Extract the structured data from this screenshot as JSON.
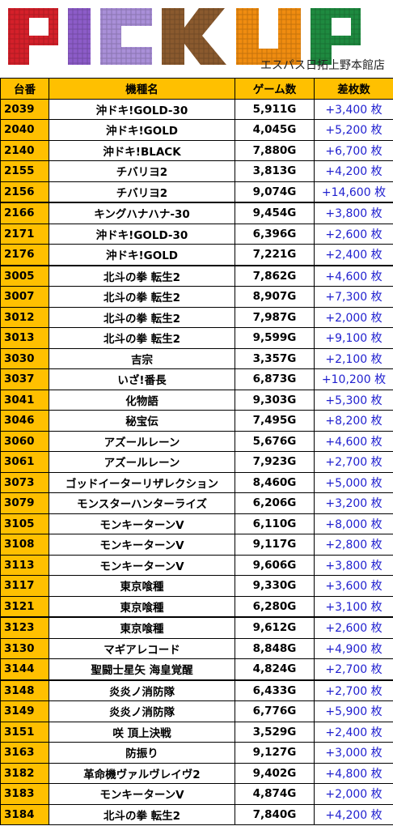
{
  "banner": {
    "logo_text": "PICKUP",
    "store_name": "エスパス日拓上野本館店",
    "colors": {
      "P": "#d4202a",
      "I": "#8c5cc8",
      "C": "#a98fd8",
      "K": "#8a5a2e",
      "U": "#f08c10",
      "P2": "#1e8a40"
    }
  },
  "table": {
    "headers": [
      "台番",
      "機種名",
      "ゲーム数",
      "差枚数"
    ],
    "rows": [
      {
        "id": "2039",
        "name": "沖ドキ!GOLD-30",
        "games": "5,911G",
        "diff": "+3,400 枚"
      },
      {
        "id": "2040",
        "name": "沖ドキ!GOLD",
        "games": "4,045G",
        "diff": "+5,200 枚"
      },
      {
        "id": "2140",
        "name": "沖ドキ!BLACK",
        "games": "7,880G",
        "diff": "+6,700 枚"
      },
      {
        "id": "2155",
        "name": "チバリヨ2",
        "games": "3,813G",
        "diff": "+4,200 枚"
      },
      {
        "id": "2156",
        "name": "チバリヨ2",
        "games": "9,074G",
        "diff": "+14,600 枚"
      },
      {
        "id": "2166",
        "name": "キングハナハナ-30",
        "games": "9,454G",
        "diff": "+3,800 枚"
      },
      {
        "id": "2171",
        "name": "沖ドキ!GOLD-30",
        "games": "6,396G",
        "diff": "+2,600 枚"
      },
      {
        "id": "2176",
        "name": "沖ドキ!GOLD",
        "games": "7,221G",
        "diff": "+2,400 枚"
      },
      {
        "id": "3005",
        "name": "北斗の拳 転生2",
        "games": "7,862G",
        "diff": "+4,600 枚"
      },
      {
        "id": "3007",
        "name": "北斗の拳 転生2",
        "games": "8,907G",
        "diff": "+7,300 枚"
      },
      {
        "id": "3012",
        "name": "北斗の拳 転生2",
        "games": "7,987G",
        "diff": "+2,000 枚"
      },
      {
        "id": "3013",
        "name": "北斗の拳 転生2",
        "games": "9,599G",
        "diff": "+9,100 枚"
      },
      {
        "id": "3030",
        "name": "吉宗",
        "games": "3,357G",
        "diff": "+2,100 枚"
      },
      {
        "id": "3037",
        "name": "いざ!番長",
        "games": "6,873G",
        "diff": "+10,200 枚"
      },
      {
        "id": "3041",
        "name": "化物語",
        "games": "9,303G",
        "diff": "+5,300 枚"
      },
      {
        "id": "3046",
        "name": "秘宝伝",
        "games": "7,495G",
        "diff": "+8,200 枚"
      },
      {
        "id": "3060",
        "name": "アズールレーン",
        "games": "5,676G",
        "diff": "+4,600 枚"
      },
      {
        "id": "3061",
        "name": "アズールレーン",
        "games": "7,923G",
        "diff": "+2,700 枚"
      },
      {
        "id": "3073",
        "name": "ゴッドイーターリザレクション",
        "games": "8,460G",
        "diff": "+5,000 枚"
      },
      {
        "id": "3079",
        "name": "モンスターハンターライズ",
        "games": "6,206G",
        "diff": "+3,200 枚"
      },
      {
        "id": "3105",
        "name": "モンキーターンV",
        "games": "6,110G",
        "diff": "+8,000 枚"
      },
      {
        "id": "3108",
        "name": "モンキーターンV",
        "games": "9,117G",
        "diff": "+2,800 枚"
      },
      {
        "id": "3113",
        "name": "モンキーターンV",
        "games": "9,606G",
        "diff": "+3,800 枚"
      },
      {
        "id": "3117",
        "name": "東京喰種",
        "games": "9,330G",
        "diff": "+3,600 枚"
      },
      {
        "id": "3121",
        "name": "東京喰種",
        "games": "6,280G",
        "diff": "+3,100 枚"
      },
      {
        "id": "3123",
        "name": "東京喰種",
        "games": "9,612G",
        "diff": "+2,600 枚"
      },
      {
        "id": "3130",
        "name": "マギアレコード",
        "games": "8,848G",
        "diff": "+4,900 枚"
      },
      {
        "id": "3144",
        "name": "聖闘士星矢 海皇覚醒",
        "games": "4,824G",
        "diff": "+2,700 枚"
      },
      {
        "id": "3148",
        "name": "炎炎ノ消防隊",
        "games": "6,433G",
        "diff": "+2,700 枚"
      },
      {
        "id": "3149",
        "name": "炎炎ノ消防隊",
        "games": "6,776G",
        "diff": "+5,900 枚"
      },
      {
        "id": "3151",
        "name": "咲 頂上決戦",
        "games": "3,529G",
        "diff": "+2,400 枚"
      },
      {
        "id": "3163",
        "name": "防振り",
        "games": "9,127G",
        "diff": "+3,000 枚"
      },
      {
        "id": "3182",
        "name": "革命機ヴァルヴレイヴ2",
        "games": "9,402G",
        "diff": "+4,800 枚"
      },
      {
        "id": "3183",
        "name": "モンキーターンV",
        "games": "4,874G",
        "diff": "+2,000 枚"
      },
      {
        "id": "3184",
        "name": "北斗の拳 転生2",
        "games": "7,840G",
        "diff": "+4,200 枚"
      }
    ]
  }
}
